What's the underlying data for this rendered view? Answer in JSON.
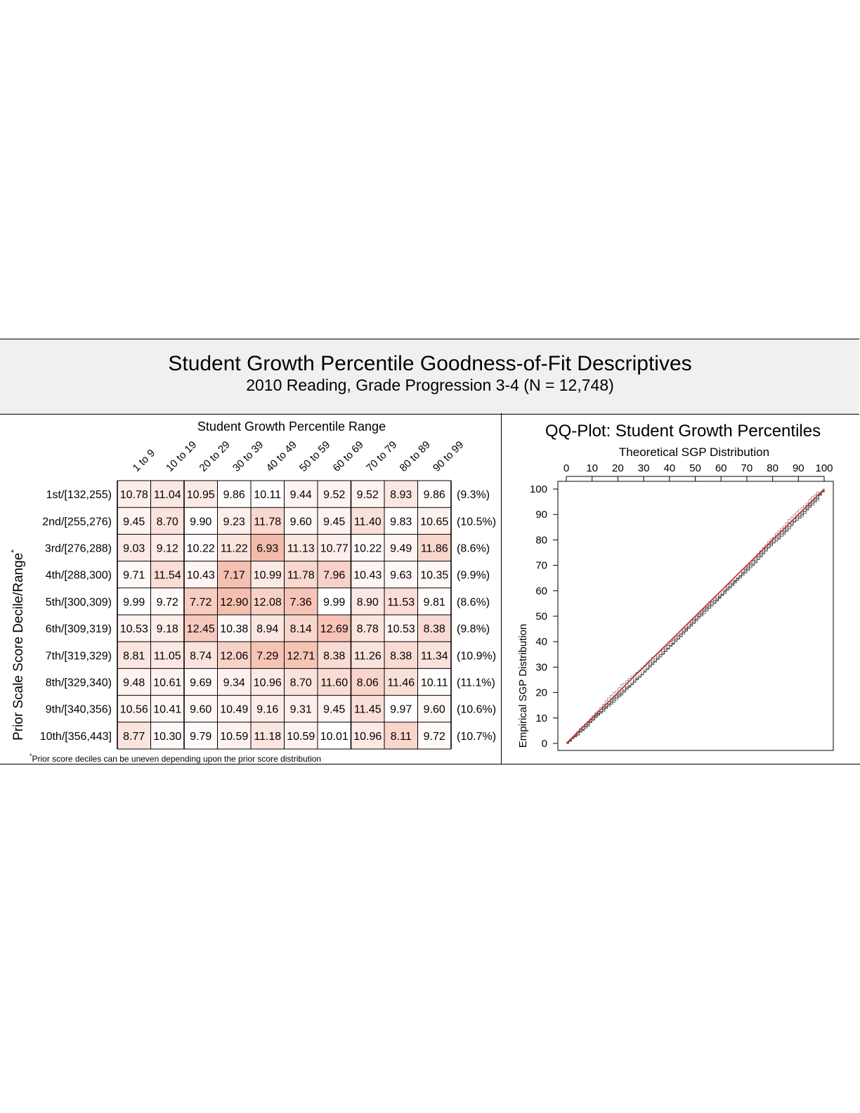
{
  "header": {
    "title": "Student Growth Percentile Goodness-of-Fit Descriptives",
    "subtitle": "2010 Reading, Grade Progression 3-4 (N = 12,748)"
  },
  "chart_data": [
    {
      "type": "heatmap",
      "title": "Student Growth Percentile Range",
      "ylabel": "Prior Scale Score Decile/Range",
      "ylabel_superscript": "*",
      "columns": [
        "1 to 9",
        "10 to 19",
        "20 to 29",
        "30 to 39",
        "40 to 49",
        "50 to 59",
        "60 to 69",
        "70 to 79",
        "80 to 89",
        "90 to 99"
      ],
      "rows": [
        "1st/[132,255)",
        "2nd/[255,276)",
        "3rd/[276,288)",
        "4th/[288,300)",
        "5th/[300,309)",
        "6th/[309,319)",
        "7th/[319,329)",
        "8th/[329,340)",
        "9th/[340,356)",
        "10th/[356,443]"
      ],
      "values": [
        [
          10.78,
          11.04,
          10.95,
          9.86,
          10.11,
          9.44,
          9.52,
          9.52,
          8.93,
          9.86
        ],
        [
          9.45,
          8.7,
          9.9,
          9.23,
          11.78,
          9.6,
          9.45,
          11.4,
          9.83,
          10.65
        ],
        [
          9.03,
          9.12,
          10.22,
          11.22,
          6.93,
          11.13,
          10.77,
          10.22,
          9.49,
          11.86
        ],
        [
          9.71,
          11.54,
          10.43,
          7.17,
          10.99,
          11.78,
          7.96,
          10.43,
          9.63,
          10.35
        ],
        [
          9.99,
          9.72,
          7.72,
          12.9,
          12.08,
          7.36,
          9.99,
          8.9,
          11.53,
          9.81
        ],
        [
          10.53,
          9.18,
          12.45,
          10.38,
          8.94,
          8.14,
          12.69,
          8.78,
          10.53,
          8.38
        ],
        [
          8.81,
          11.05,
          8.74,
          12.06,
          7.29,
          12.71,
          8.38,
          11.26,
          8.38,
          11.34
        ],
        [
          9.48,
          10.61,
          9.69,
          9.34,
          10.96,
          8.7,
          11.6,
          8.06,
          11.46,
          10.11
        ],
        [
          10.56,
          10.41,
          9.6,
          10.49,
          9.16,
          9.31,
          9.45,
          11.45,
          9.97,
          9.6
        ],
        [
          8.77,
          10.3,
          9.79,
          10.59,
          11.18,
          10.59,
          10.01,
          10.96,
          8.11,
          9.72
        ]
      ],
      "row_percents": [
        "(9.3%)",
        "(10.5%)",
        "(8.6%)",
        "(9.9%)",
        "(8.6%)",
        "(9.8%)",
        "(10.9%)",
        "(11.1%)",
        "(10.6%)",
        "(10.7%)"
      ],
      "footnote_mark": "*",
      "footnote": "Prior score deciles can be uneven depending upon the prior score distribution",
      "colors": {
        "low_fill": "#ffffff",
        "high_fill": "#f4b8a8",
        "grid": "#000000"
      }
    },
    {
      "type": "line",
      "title": "QQ-Plot: Student Growth Percentiles",
      "xlabel": "Theoretical SGP Distribution",
      "ylabel": "Empirical SGP Distribution",
      "xlim": [
        0,
        100
      ],
      "ylim": [
        0,
        100
      ],
      "xticks": [
        0,
        10,
        20,
        30,
        40,
        50,
        60,
        70,
        80,
        90,
        100
      ],
      "yticks": [
        0,
        10,
        20,
        30,
        40,
        50,
        60,
        70,
        80,
        90,
        100
      ],
      "grid": false,
      "series": [
        {
          "role": "reference",
          "color": "#cc2222",
          "x": [
            0,
            100
          ],
          "y": [
            0,
            100
          ]
        },
        {
          "role": "empirical",
          "color": "#333333",
          "count": 8,
          "max_deviation": 2.0
        }
      ]
    }
  ]
}
